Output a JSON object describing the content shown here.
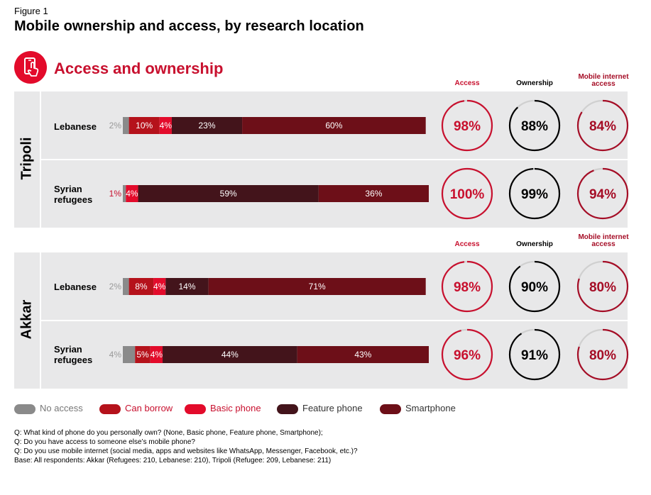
{
  "figure_label": "Figure 1",
  "title": "Mobile ownership and access, by research location",
  "section_title": "Access and ownership",
  "colors": {
    "no_access": "#8a8a8a",
    "can_borrow": "#b5121b",
    "basic_phone": "#e30b2b",
    "feature_phone": "#43141b",
    "smartphone": "#6d0f18",
    "access_ring": "#c8102e",
    "ownership_ring": "#000000",
    "mobile_ring": "#a50d26",
    "ring_track": "#d0d0d0"
  },
  "column_headers": {
    "access": "Access",
    "ownership": "Ownership",
    "mobile_internet_line1": "Mobile internet",
    "mobile_internet_line2": "access"
  },
  "legend": [
    {
      "label": "No access",
      "key": "no_access"
    },
    {
      "label": "Can borrow",
      "key": "can_borrow"
    },
    {
      "label": "Basic phone",
      "key": "basic_phone"
    },
    {
      "label": "Feature phone",
      "key": "feature_phone"
    },
    {
      "label": "Smartphone",
      "key": "smartphone"
    }
  ],
  "chart_data": {
    "type": "bar",
    "stacked": true,
    "orientation": "horizontal",
    "series_names": [
      "No access",
      "Can borrow",
      "Basic phone",
      "Feature phone",
      "Smartphone"
    ],
    "locations": [
      {
        "name": "Tripoli",
        "groups": [
          {
            "label_line1": "Lebanese",
            "label_line2": "",
            "values": [
              2,
              10,
              4,
              23,
              60
            ],
            "labels": [
              "2%",
              "10%",
              "4%",
              "23%",
              "60%"
            ],
            "access": 98,
            "access_label": "98%",
            "ownership": 88,
            "ownership_label": "88%",
            "mobile_internet": 84,
            "mobile_internet_label": "84%"
          },
          {
            "label_line1": "Syrian",
            "label_line2": "refugees",
            "values": [
              1,
              0,
              4,
              59,
              36
            ],
            "labels": [
              "1%",
              "",
              "4%",
              "59%",
              "36%"
            ],
            "access": 100,
            "access_label": "100%",
            "ownership": 99,
            "ownership_label": "99%",
            "mobile_internet": 94,
            "mobile_internet_label": "94%"
          }
        ]
      },
      {
        "name": "Akkar",
        "groups": [
          {
            "label_line1": "Lebanese",
            "label_line2": "",
            "values": [
              2,
              8,
              4,
              14,
              71
            ],
            "labels": [
              "2%",
              "8%",
              "4%",
              "14%",
              "71%"
            ],
            "access": 98,
            "access_label": "98%",
            "ownership": 90,
            "ownership_label": "90%",
            "mobile_internet": 80,
            "mobile_internet_label": "80%"
          },
          {
            "label_line1": "Syrian",
            "label_line2": "refugees",
            "values": [
              4,
              5,
              4,
              44,
              43
            ],
            "labels": [
              "4%",
              "5%",
              "4%",
              "44%",
              "43%"
            ],
            "access": 96,
            "access_label": "96%",
            "ownership": 91,
            "ownership_label": "91%",
            "mobile_internet": 80,
            "mobile_internet_label": "80%"
          }
        ]
      }
    ]
  },
  "footnotes": [
    "Q: What kind of phone do you personally own? (None, Basic phone, Feature phone, Smartphone);",
    "Q: Do you have access to someone else’s mobile phone?",
    "Q: Do you use mobile internet (social media, apps and websites like WhatsApp, Messenger, Facebook, etc.)?",
    "Base: All respondents: Akkar (Refugees: 210, Lebanese: 210), Tripoli (Refugee: 209, Lebanese: 211)"
  ]
}
